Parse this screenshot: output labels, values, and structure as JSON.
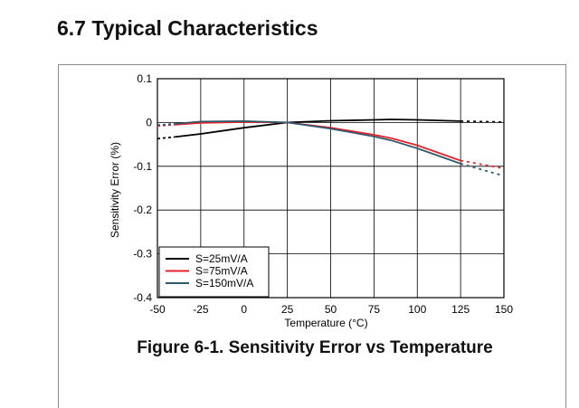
{
  "section": {
    "title": "6.7 Typical Characteristics"
  },
  "figure": {
    "caption": "Figure 6-1. Sensitivity Error vs Temperature"
  },
  "chart_data": {
    "type": "line",
    "title": "",
    "xlabel": "Temperature (°C)",
    "ylabel": "Sensitivity Error (%)",
    "xlim": [
      -50,
      150
    ],
    "ylim": [
      -0.4,
      0.1
    ],
    "xticks": [
      "-50",
      "-25",
      "0",
      "25",
      "50",
      "75",
      "100",
      "125",
      "150"
    ],
    "yticks": [
      "0.1",
      "0",
      "-0.1",
      "-0.2",
      "-0.3",
      "-0.4"
    ],
    "grid": true,
    "legend_position": "bottom-left",
    "series": [
      {
        "name": "S=25mV/A",
        "color": "#000000",
        "solid": {
          "x": [
            -40,
            -25,
            0,
            25,
            50,
            75,
            85,
            100,
            125
          ],
          "y": [
            -0.033,
            -0.026,
            -0.012,
            0,
            0.004,
            0.006,
            0.007,
            0.006,
            0.003
          ]
        },
        "dashed": {
          "x": [
            -50,
            -40
          ],
          "y": [
            -0.037,
            -0.033
          ]
        },
        "dashed_end": {
          "x": [
            125,
            150
          ],
          "y": [
            0.003,
            0.001
          ]
        }
      },
      {
        "name": "S=75mV/A",
        "color": "#e8212a",
        "solid": {
          "x": [
            -40,
            -25,
            0,
            25,
            50,
            75,
            85,
            100,
            125
          ],
          "y": [
            -0.005,
            -0.001,
            0.001,
            0,
            -0.012,
            -0.028,
            -0.036,
            -0.052,
            -0.087
          ]
        },
        "dashed": {
          "x": [
            -50,
            -40
          ],
          "y": [
            -0.008,
            -0.005
          ]
        },
        "dashed_end": {
          "x": [
            125,
            150
          ],
          "y": [
            -0.087,
            -0.105
          ]
        }
      },
      {
        "name": "S=150mV/A",
        "color": "#2f5a6e",
        "solid": {
          "x": [
            -40,
            -25,
            0,
            25,
            50,
            75,
            85,
            100,
            125
          ],
          "y": [
            -0.003,
            0.002,
            0.003,
            0,
            -0.014,
            -0.032,
            -0.041,
            -0.059,
            -0.094
          ]
        },
        "dashed": {
          "x": [
            -50,
            -40
          ],
          "y": [
            -0.006,
            -0.003
          ]
        },
        "dashed_end": {
          "x": [
            125,
            150
          ],
          "y": [
            -0.094,
            -0.122
          ]
        }
      }
    ]
  }
}
